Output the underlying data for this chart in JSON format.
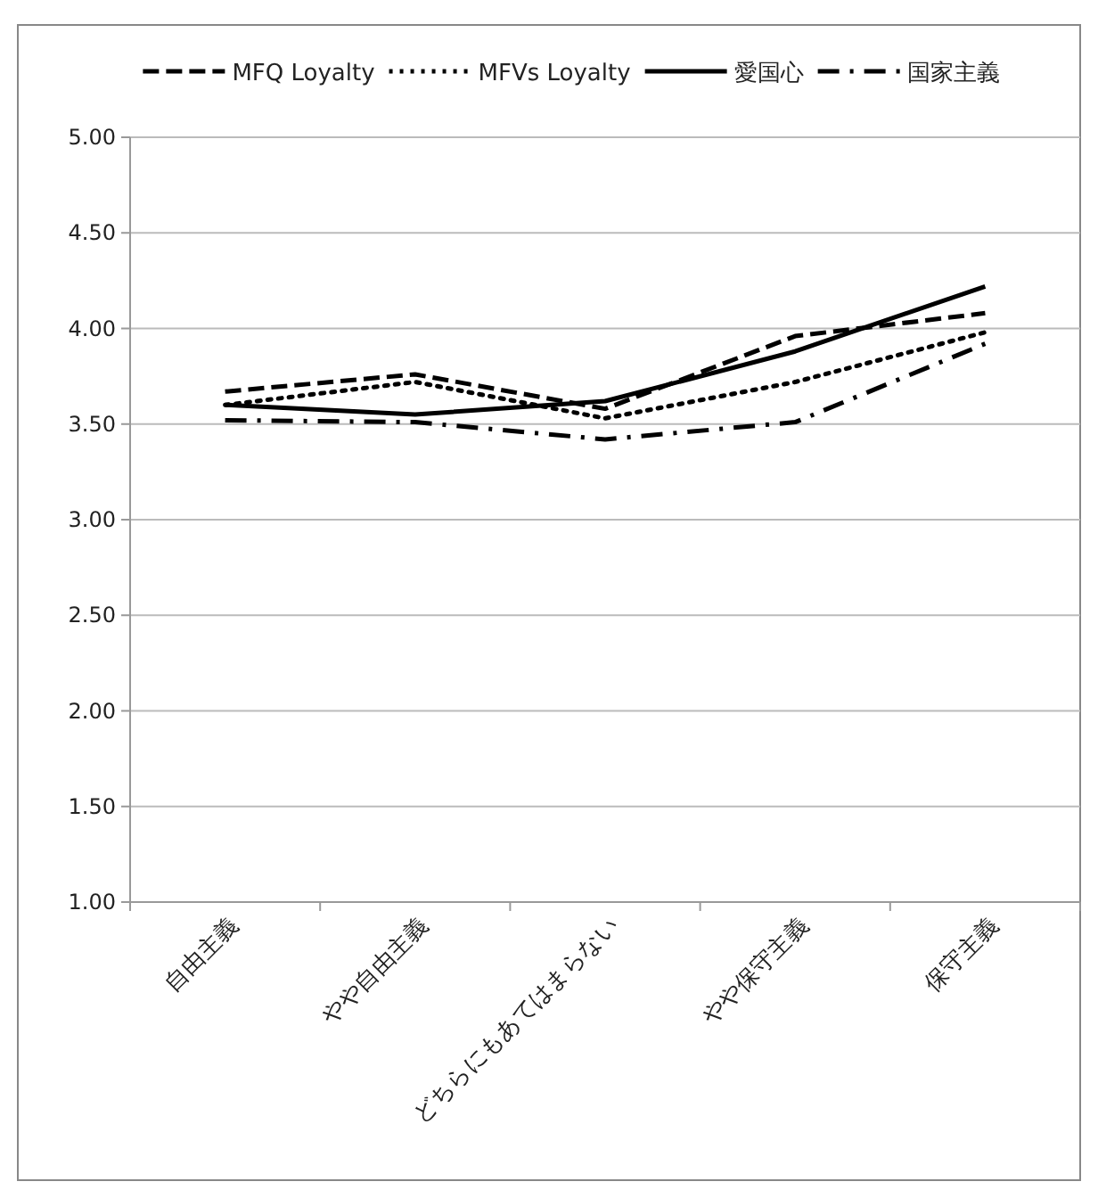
{
  "chart_data": {
    "type": "line",
    "categories": [
      "自由主義",
      "やや自由主義",
      "どちらにもあてはまらない",
      "やや保守主義",
      "保守主義"
    ],
    "series": [
      {
        "name": "MFQ Loyalty",
        "color": "#000000",
        "line_style": "dashed",
        "values": [
          3.67,
          3.76,
          3.58,
          3.96,
          4.08
        ]
      },
      {
        "name": "MFVs Loyalty",
        "color": "#000000",
        "line_style": "dotted",
        "values": [
          3.6,
          3.72,
          3.53,
          3.72,
          3.98
        ]
      },
      {
        "name": "愛国心",
        "color": "#000000",
        "line_style": "solid",
        "values": [
          3.6,
          3.55,
          3.62,
          3.88,
          4.22
        ]
      },
      {
        "name": "国家主義",
        "color": "#000000",
        "line_style": "dashdot",
        "values": [
          3.52,
          3.51,
          3.42,
          3.51,
          3.92
        ]
      }
    ],
    "ylim": [
      1,
      5
    ],
    "yticks": [
      {
        "value": 1,
        "label": "1.00"
      },
      {
        "value": 1.5,
        "label": "1.50"
      },
      {
        "value": 2,
        "label": "2.00"
      },
      {
        "value": 2.5,
        "label": "2.50"
      },
      {
        "value": 3,
        "label": "3.00"
      },
      {
        "value": 3.5,
        "label": "3.50"
      },
      {
        "value": 4,
        "label": "4.00"
      },
      {
        "value": 4.5,
        "label": "4.50"
      },
      {
        "value": 5,
        "label": "5.00"
      }
    ],
    "grid": "y",
    "legend": "top",
    "marker": "none"
  }
}
